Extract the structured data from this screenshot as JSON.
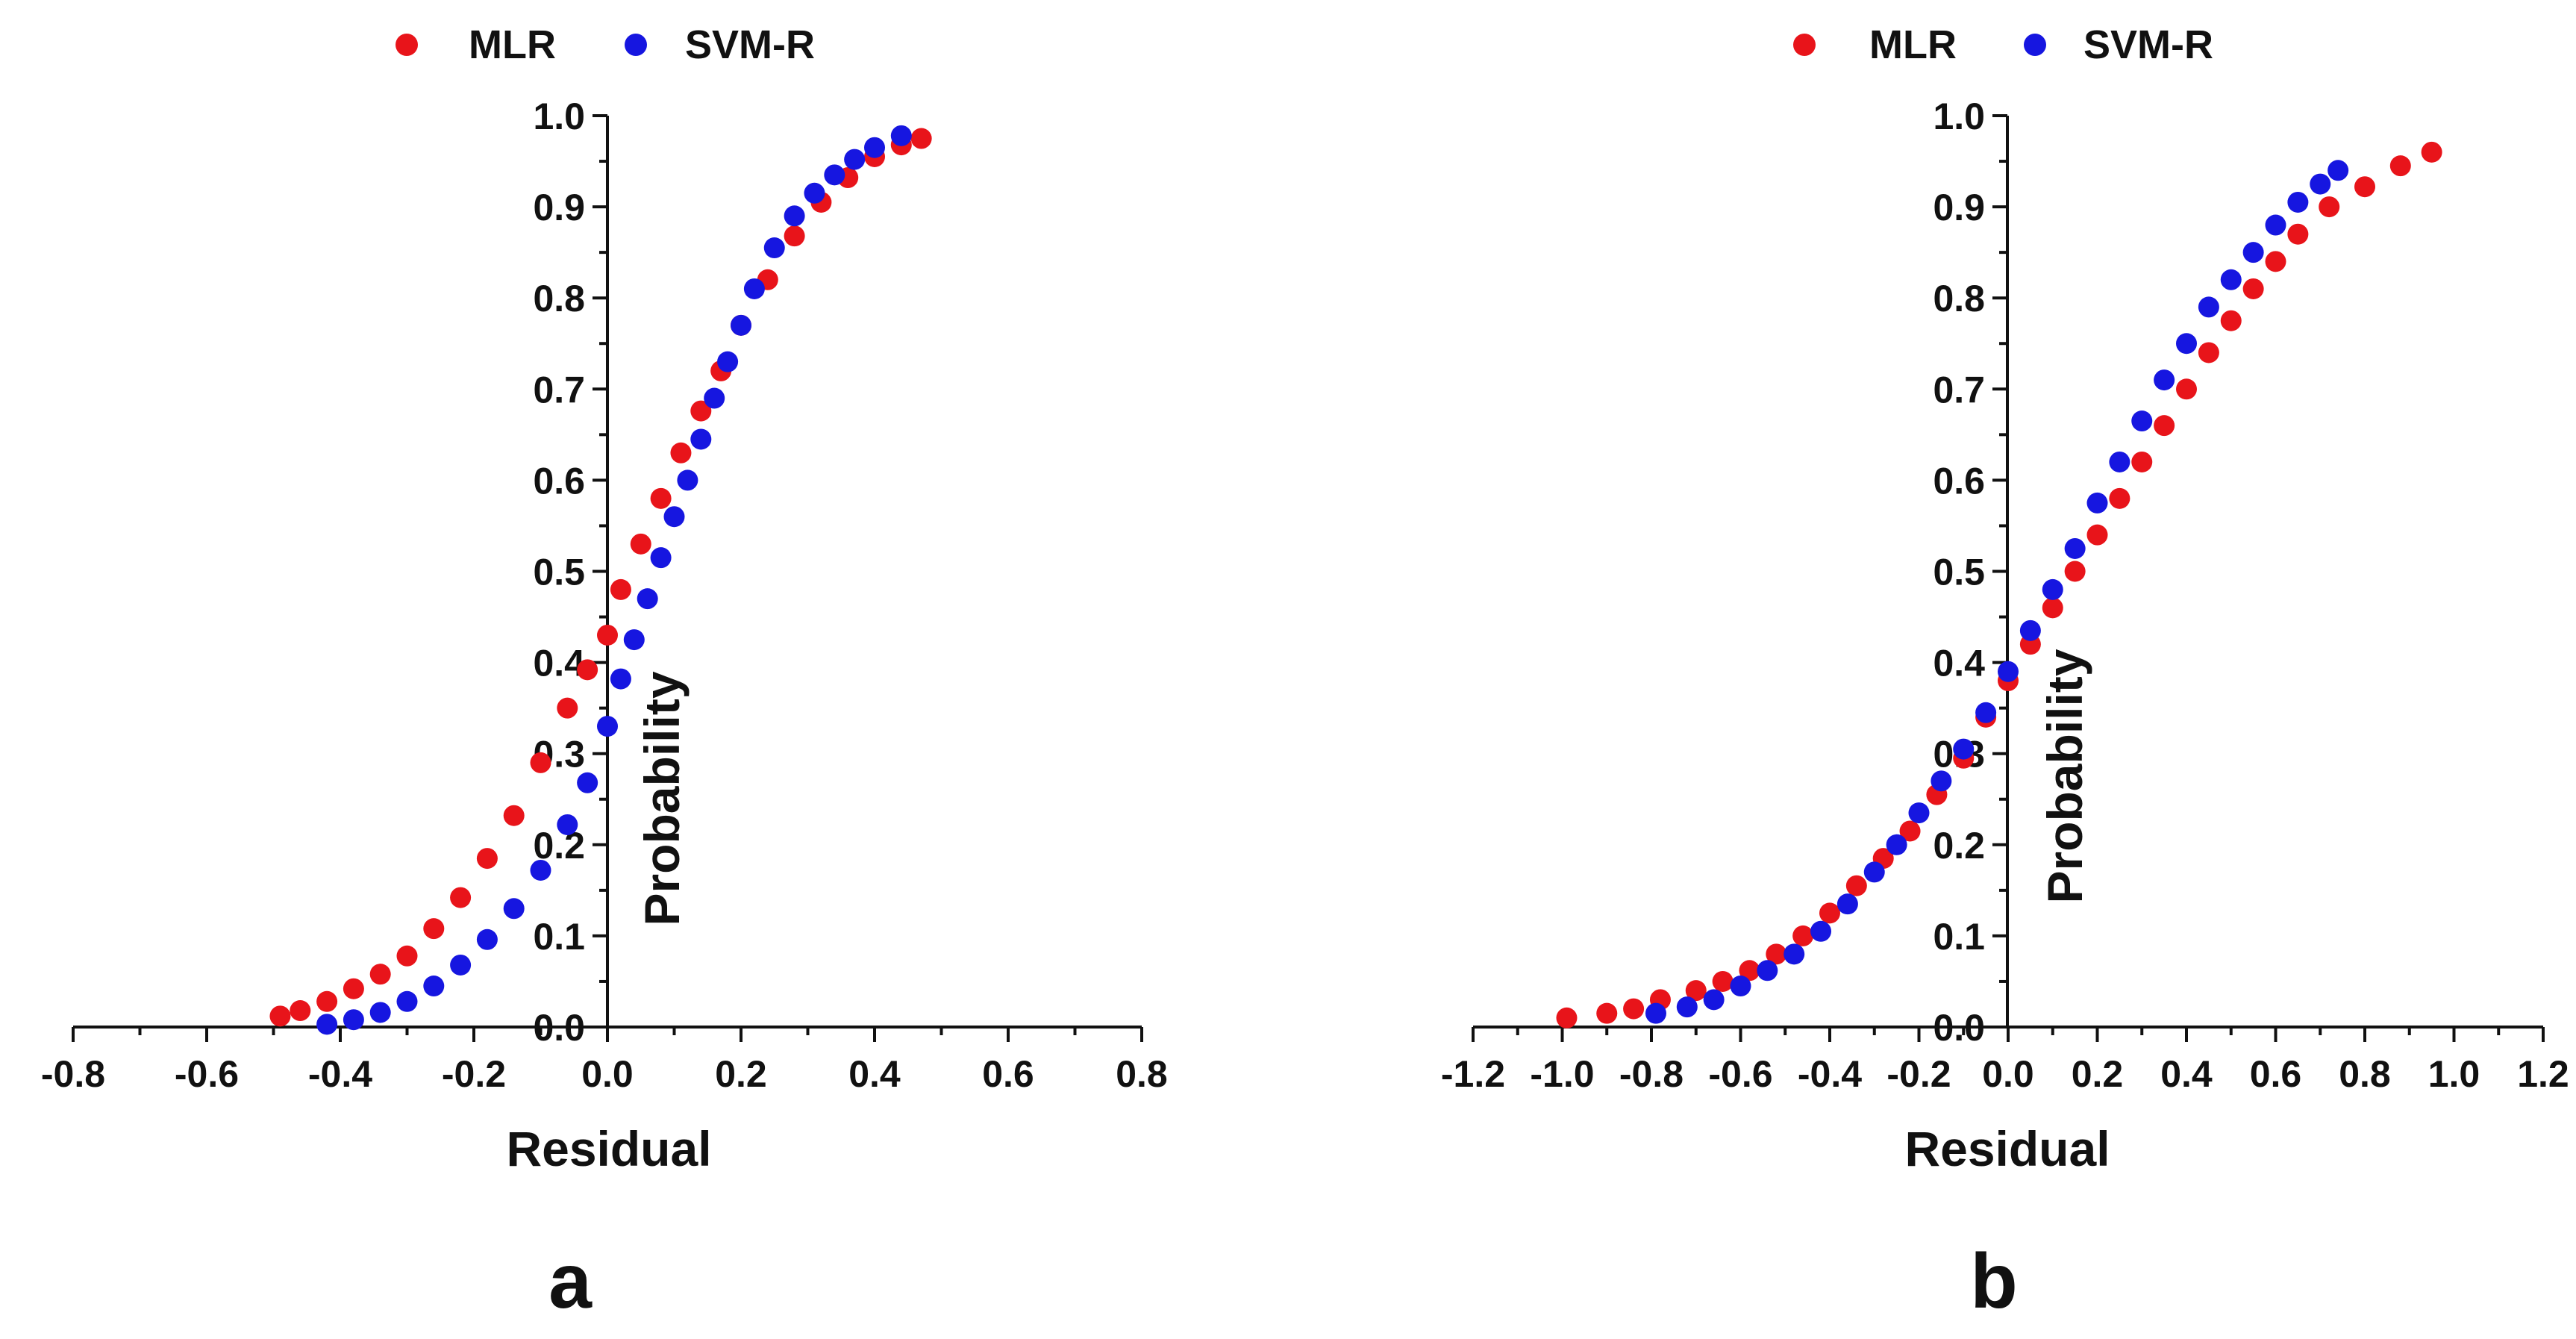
{
  "figure": {
    "panel_labels": [
      "a",
      "b"
    ]
  },
  "chart_data": [
    {
      "type": "scatter",
      "panel": "a",
      "title": "",
      "xlabel": "Residual",
      "ylabel": "Probability",
      "xlim": [
        -0.8,
        0.8
      ],
      "ylim": [
        0.0,
        1.0
      ],
      "xticks": [
        "-0.8",
        "-0.6",
        "-0.4",
        "-0.2",
        "0.0",
        "0.2",
        "0.4",
        "0.6",
        "0.8"
      ],
      "yticks": [
        "0.0",
        "0.1",
        "0.2",
        "0.3",
        "0.4",
        "0.5",
        "0.6",
        "0.7",
        "0.8",
        "0.9",
        "1.0"
      ],
      "grid": false,
      "legend_position": "top",
      "series": [
        {
          "name": "MLR",
          "color": "#e8141a",
          "points": [
            [
              -0.49,
              0.012
            ],
            [
              -0.46,
              0.018
            ],
            [
              -0.42,
              0.028
            ],
            [
              -0.38,
              0.042
            ],
            [
              -0.34,
              0.058
            ],
            [
              -0.3,
              0.078
            ],
            [
              -0.26,
              0.108
            ],
            [
              -0.22,
              0.142
            ],
            [
              -0.18,
              0.185
            ],
            [
              -0.14,
              0.232
            ],
            [
              -0.1,
              0.29
            ],
            [
              -0.06,
              0.35
            ],
            [
              -0.03,
              0.392
            ],
            [
              0.0,
              0.43
            ],
            [
              0.02,
              0.48
            ],
            [
              0.05,
              0.53
            ],
            [
              0.08,
              0.58
            ],
            [
              0.11,
              0.63
            ],
            [
              0.14,
              0.676
            ],
            [
              0.17,
              0.72
            ],
            [
              0.2,
              0.77
            ],
            [
              0.24,
              0.82
            ],
            [
              0.28,
              0.868
            ],
            [
              0.32,
              0.905
            ],
            [
              0.36,
              0.932
            ],
            [
              0.4,
              0.955
            ],
            [
              0.44,
              0.968
            ],
            [
              0.47,
              0.975
            ]
          ]
        },
        {
          "name": "SVM-R",
          "color": "#1616e0",
          "points": [
            [
              -0.42,
              0.003
            ],
            [
              -0.38,
              0.008
            ],
            [
              -0.34,
              0.016
            ],
            [
              -0.3,
              0.028
            ],
            [
              -0.26,
              0.045
            ],
            [
              -0.22,
              0.068
            ],
            [
              -0.18,
              0.096
            ],
            [
              -0.14,
              0.13
            ],
            [
              -0.1,
              0.172
            ],
            [
              -0.06,
              0.222
            ],
            [
              -0.03,
              0.268
            ],
            [
              0.0,
              0.33
            ],
            [
              0.02,
              0.382
            ],
            [
              0.04,
              0.425
            ],
            [
              0.06,
              0.47
            ],
            [
              0.08,
              0.515
            ],
            [
              0.1,
              0.56
            ],
            [
              0.12,
              0.6
            ],
            [
              0.14,
              0.645
            ],
            [
              0.16,
              0.69
            ],
            [
              0.18,
              0.73
            ],
            [
              0.2,
              0.77
            ],
            [
              0.22,
              0.81
            ],
            [
              0.25,
              0.855
            ],
            [
              0.28,
              0.89
            ],
            [
              0.31,
              0.915
            ],
            [
              0.34,
              0.935
            ],
            [
              0.37,
              0.952
            ],
            [
              0.4,
              0.965
            ],
            [
              0.44,
              0.978
            ]
          ]
        }
      ]
    },
    {
      "type": "scatter",
      "panel": "b",
      "title": "",
      "xlabel": "Residual",
      "ylabel": "Probability",
      "xlim": [
        -1.2,
        1.2
      ],
      "ylim": [
        0.0,
        1.0
      ],
      "xticks": [
        "-1.2",
        "-1.0",
        "-0.8",
        "-0.6",
        "-0.4",
        "-0.2",
        "0.0",
        "0.2",
        "0.4",
        "0.6",
        "0.8",
        "1.0",
        "1.2"
      ],
      "yticks": [
        "0.0",
        "0.1",
        "0.2",
        "0.3",
        "0.4",
        "0.5",
        "0.6",
        "0.7",
        "0.8",
        "0.9",
        "1.0"
      ],
      "grid": false,
      "legend_position": "top",
      "series": [
        {
          "name": "MLR",
          "color": "#e8141a",
          "points": [
            [
              -0.99,
              0.01
            ],
            [
              -0.9,
              0.015
            ],
            [
              -0.84,
              0.02
            ],
            [
              -0.78,
              0.03
            ],
            [
              -0.7,
              0.04
            ],
            [
              -0.64,
              0.05
            ],
            [
              -0.58,
              0.062
            ],
            [
              -0.52,
              0.08
            ],
            [
              -0.46,
              0.1
            ],
            [
              -0.4,
              0.125
            ],
            [
              -0.34,
              0.155
            ],
            [
              -0.28,
              0.185
            ],
            [
              -0.22,
              0.215
            ],
            [
              -0.16,
              0.255
            ],
            [
              -0.1,
              0.295
            ],
            [
              -0.05,
              0.34
            ],
            [
              0.0,
              0.38
            ],
            [
              0.05,
              0.42
            ],
            [
              0.1,
              0.46
            ],
            [
              0.15,
              0.5
            ],
            [
              0.2,
              0.54
            ],
            [
              0.25,
              0.58
            ],
            [
              0.3,
              0.62
            ],
            [
              0.35,
              0.66
            ],
            [
              0.4,
              0.7
            ],
            [
              0.45,
              0.74
            ],
            [
              0.5,
              0.775
            ],
            [
              0.55,
              0.81
            ],
            [
              0.6,
              0.84
            ],
            [
              0.65,
              0.87
            ],
            [
              0.72,
              0.9
            ],
            [
              0.8,
              0.922
            ],
            [
              0.88,
              0.945
            ],
            [
              0.95,
              0.96
            ]
          ]
        },
        {
          "name": "SVM-R",
          "color": "#1616e0",
          "points": [
            [
              -0.79,
              0.015
            ],
            [
              -0.72,
              0.022
            ],
            [
              -0.66,
              0.03
            ],
            [
              -0.6,
              0.045
            ],
            [
              -0.54,
              0.062
            ],
            [
              -0.48,
              0.08
            ],
            [
              -0.42,
              0.105
            ],
            [
              -0.36,
              0.135
            ],
            [
              -0.3,
              0.17
            ],
            [
              -0.25,
              0.2
            ],
            [
              -0.2,
              0.235
            ],
            [
              -0.15,
              0.27
            ],
            [
              -0.1,
              0.305
            ],
            [
              -0.05,
              0.345
            ],
            [
              0.0,
              0.39
            ],
            [
              0.05,
              0.435
            ],
            [
              0.1,
              0.48
            ],
            [
              0.15,
              0.525
            ],
            [
              0.2,
              0.575
            ],
            [
              0.25,
              0.62
            ],
            [
              0.3,
              0.665
            ],
            [
              0.35,
              0.71
            ],
            [
              0.4,
              0.75
            ],
            [
              0.45,
              0.79
            ],
            [
              0.5,
              0.82
            ],
            [
              0.55,
              0.85
            ],
            [
              0.6,
              0.88
            ],
            [
              0.65,
              0.905
            ],
            [
              0.7,
              0.925
            ],
            [
              0.74,
              0.94
            ]
          ]
        }
      ]
    }
  ]
}
